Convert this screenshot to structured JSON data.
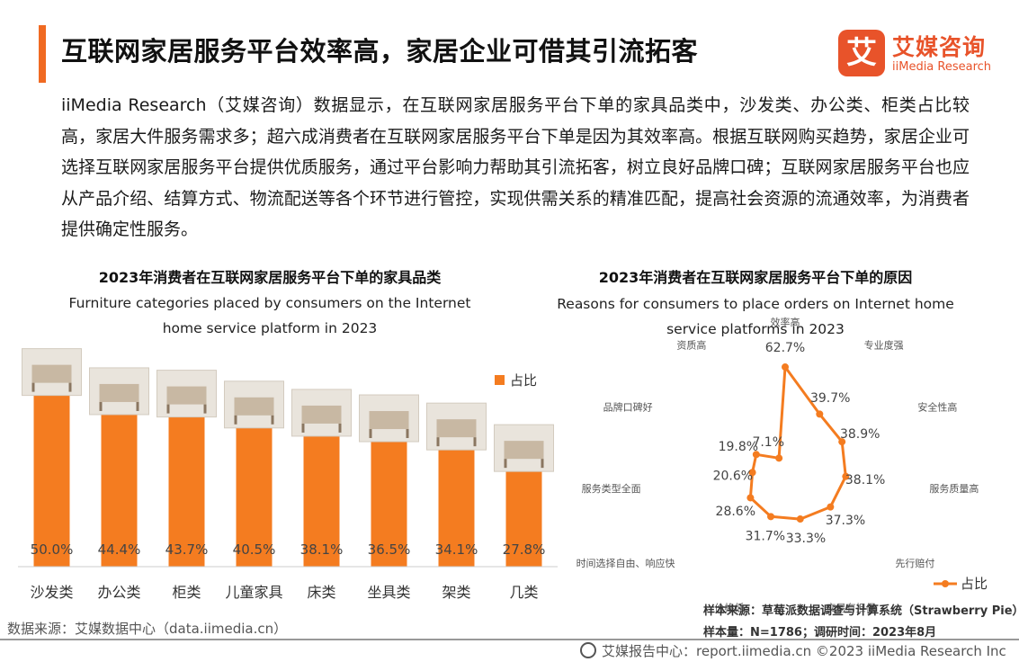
{
  "title": "互联网家居服务平台效率高，家居企业可借其引流拓客",
  "logo": {
    "mark": "艾",
    "cn": "艾媒咨询",
    "en": "iiMedia Research"
  },
  "intro": "iiMedia Research（艾媒咨询）数据显示，在互联网家居服务平台下单的家具品类中，沙发类、办公类、柜类占比较高，家居大件服务需求多；超六成消费者在互联网家居服务平台下单是因为其效率高。根据互联网购买趋势，家居企业可选择互联网家居服务平台提供优质服务，通过平台影响力帮助其引流拓客，树立良好品牌口碑；互联网家居服务平台也应从产品介绍、结算方式、物流配送等各个环节进行管控，实现供需关系的精准匹配，提高社会资源的流通效率，为消费者提供确定性服务。",
  "colors": {
    "accent": "#f06a22",
    "series": "#f47c20"
  },
  "chart_data": [
    {
      "type": "bar",
      "title": "2023年消费者在互联网家居服务平台下单的家具品类",
      "subtitle": "Furniture categories placed by consumers on the Internet home service platform in 2023",
      "categories": [
        "沙发类",
        "办公类",
        "柜类",
        "儿童家具",
        "床类",
        "坐具类",
        "架类",
        "几类"
      ],
      "series": [
        {
          "name": "占比",
          "values": [
            50.0,
            44.4,
            43.7,
            40.5,
            38.1,
            36.5,
            34.1,
            27.8
          ]
        }
      ],
      "value_labels": [
        "50.0%",
        "44.4%",
        "43.7%",
        "40.5%",
        "38.1%",
        "36.5%",
        "34.1%",
        "27.8%"
      ],
      "ylim": [
        0,
        52
      ],
      "legend": "top-right",
      "grid": false
    },
    {
      "type": "radar",
      "title": "2023年消费者在互联网家居服务平台下单的原因",
      "subtitle": "Reasons for consumers to place orders on Internet home service platforms in 2023",
      "categories": [
        "效率高",
        "专业度强",
        "安全性高",
        "服务质量高",
        "先行赔付",
        "交易有担保",
        "价格低",
        "时间选择自由、响应快",
        "服务类型全面",
        "品牌口碑好",
        "资质高"
      ],
      "series": [
        {
          "name": "占比",
          "values": [
            62.7,
            39.7,
            38.9,
            38.1,
            37.3,
            33.3,
            31.7,
            28.6,
            20.6,
            19.8,
            7.1
          ]
        }
      ],
      "value_labels": [
        "62.7%",
        "39.7%",
        "38.9%",
        "38.1%",
        "37.3%",
        "33.3%",
        "31.7%",
        "28.6%",
        "20.6%",
        "19.8%",
        "7.1%"
      ],
      "rmax": 70,
      "legend": "bottom-right"
    }
  ],
  "footer": {
    "source": "数据来源：艾媒数据中心（data.iimedia.cn）",
    "sample_source": "样本来源：草莓派数据调查与计算系统（Strawberry Pie）",
    "sample_size": "样本量：N=1786；调研时间：2023年8月",
    "copyright": "艾媒报告中心：report.iimedia.cn  ©2023  iiMedia Research  Inc"
  }
}
